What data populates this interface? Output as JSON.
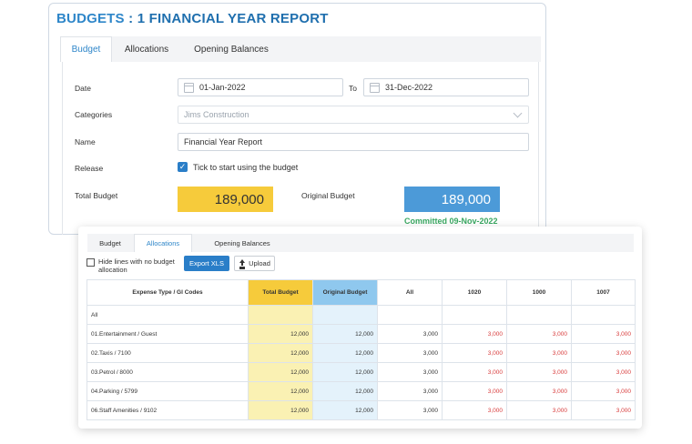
{
  "header": {
    "title_prefix": "BUDGETS",
    "title_rest": ": 1 FINANCIAL YEAR REPORT"
  },
  "top_tabs": [
    "Budget",
    "Allocations",
    "Opening Balances"
  ],
  "form": {
    "date_label": "Date",
    "date_from": "01-Jan-2022",
    "to_label": "To",
    "date_to": "31-Dec-2022",
    "categories_label": "Categories",
    "categories_value": "Jims Construction",
    "name_label": "Name",
    "name_value": "Financial Year Report",
    "release_label": "Release",
    "release_text": "Tick to start using the budget",
    "total_budget_label": "Total Budget",
    "total_budget_value": "189,000",
    "original_budget_label": "Original Budget",
    "original_budget_value": "189,000",
    "committed_text": "Committed 09-Nov-2022"
  },
  "alloc": {
    "tabs": [
      "Budget",
      "Allocations",
      "Opening Balances"
    ],
    "hide_label": "Hide lines with no budget allocation",
    "export_label": "Export XLS",
    "upload_label": "Upload",
    "columns": [
      "Expense Type / Gl Codes",
      "Total Budget",
      "Original Budget",
      "All",
      "1020",
      "1000",
      "1007"
    ],
    "rows": [
      {
        "code": "All",
        "total": "",
        "orig": "",
        "all": "",
        "c1020": "",
        "c1000": "",
        "c1007": ""
      },
      {
        "code": "01.Entertainment    / Guest",
        "total": "12,000",
        "orig": "12,000",
        "all": "3,000",
        "c1020": "3,000",
        "c1000": "3,000",
        "c1007": "3,000"
      },
      {
        "code": "02.Taxis    / 7100",
        "total": "12,000",
        "orig": "12,000",
        "all": "3,000",
        "c1020": "3,000",
        "c1000": "3,000",
        "c1007": "3,000"
      },
      {
        "code": "03.Petrol    / 8000",
        "total": "12,000",
        "orig": "12,000",
        "all": "3,000",
        "c1020": "3,000",
        "c1000": "3,000",
        "c1007": "3,000"
      },
      {
        "code": "04.Parking    / 5799",
        "total": "12,000",
        "orig": "12,000",
        "all": "3,000",
        "c1020": "3,000",
        "c1000": "3,000",
        "c1007": "3,000"
      },
      {
        "code": "06.Staff Amenities    / 9102",
        "total": "12,000",
        "orig": "12,000",
        "all": "3,000",
        "c1020": "3,000",
        "c1000": "3,000",
        "c1007": "3,000"
      }
    ]
  }
}
